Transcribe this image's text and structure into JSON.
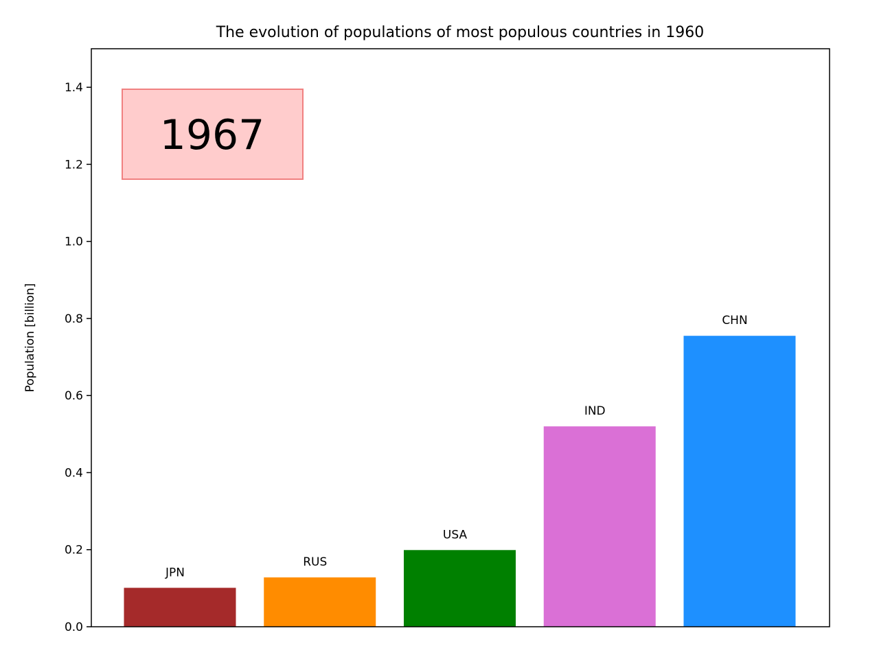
{
  "chart_data": {
    "type": "bar",
    "title": "The evolution of populations of most populous countries in 1960",
    "xlabel": "",
    "ylabel": "Population [billion]",
    "ylim": [
      0,
      1.5
    ],
    "yticks": [
      "0.0",
      "0.2",
      "0.4",
      "0.6",
      "0.8",
      "1.0",
      "1.2",
      "1.4"
    ],
    "ytick_values": [
      0,
      0.2,
      0.4,
      0.6,
      0.8,
      1.0,
      1.2,
      1.4
    ],
    "grid": false,
    "annotation": {
      "text": "1967",
      "background": "#ffcccc",
      "border": "#f08080"
    },
    "categories": [
      "JPN",
      "RUS",
      "USA",
      "IND",
      "CHN"
    ],
    "values": [
      0.101,
      0.128,
      0.199,
      0.52,
      0.755
    ],
    "colors": [
      "#a52a2a",
      "#ff8c00",
      "#008000",
      "#da70d6",
      "#1e90ff"
    ]
  }
}
